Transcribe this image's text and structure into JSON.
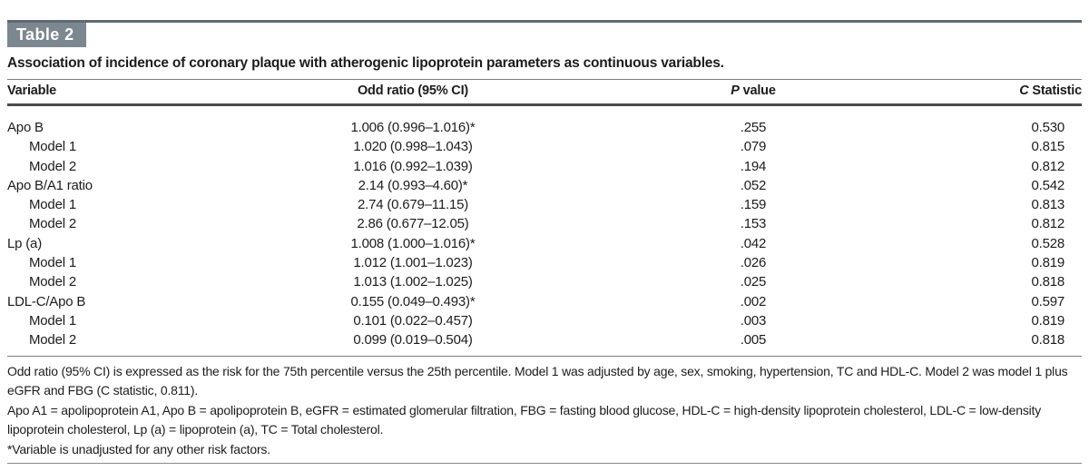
{
  "page": {
    "badge": "Table 2",
    "caption": "Association of incidence of coronary plaque with atherogenic lipoprotein parameters as continuous variables."
  },
  "colors": {
    "badge_bg": "#7b8890",
    "badge_text": "#ffffff",
    "rule_heavy": "#5f6b70",
    "rule_dark": "#4b4b4b",
    "rule_light": "#7e7e7e",
    "text": "#1c1c1c"
  },
  "table": {
    "columns": [
      {
        "italic": "",
        "label": "Variable"
      },
      {
        "italic": "",
        "label": "Odd ratio (95% CI)"
      },
      {
        "italic": "P",
        "label": " value"
      },
      {
        "italic": "C",
        "label": " Statistic"
      }
    ],
    "rows": [
      {
        "variable": "Apo B",
        "indent": false,
        "odd_ratio": "1.006 (0.996–1.016)*",
        "p_value": ".255",
        "c_statistic": "0.530"
      },
      {
        "variable": "Model 1",
        "indent": true,
        "odd_ratio": "1.020 (0.998–1.043)",
        "p_value": ".079",
        "c_statistic": "0.815"
      },
      {
        "variable": "Model 2",
        "indent": true,
        "odd_ratio": "1.016 (0.992–1.039)",
        "p_value": ".194",
        "c_statistic": "0.812"
      },
      {
        "variable": "Apo B/A1 ratio",
        "indent": false,
        "odd_ratio": "2.14 (0.993–4.60)*",
        "p_value": ".052",
        "c_statistic": "0.542"
      },
      {
        "variable": "Model 1",
        "indent": true,
        "odd_ratio": "2.74 (0.679–11.15)",
        "p_value": ".159",
        "c_statistic": "0.813"
      },
      {
        "variable": "Model 2",
        "indent": true,
        "odd_ratio": "2.86 (0.677–12.05)",
        "p_value": ".153",
        "c_statistic": "0.812"
      },
      {
        "variable": "Lp (a)",
        "indent": false,
        "odd_ratio": "1.008 (1.000–1.016)*",
        "p_value": ".042",
        "c_statistic": "0.528"
      },
      {
        "variable": "Model 1",
        "indent": true,
        "odd_ratio": "1.012 (1.001–1.023)",
        "p_value": ".026",
        "c_statistic": "0.819"
      },
      {
        "variable": "Model 2",
        "indent": true,
        "odd_ratio": "1.013 (1.002–1.025)",
        "p_value": ".025",
        "c_statistic": "0.818"
      },
      {
        "variable": "LDL-C/Apo B",
        "indent": false,
        "odd_ratio": "0.155 (0.049–0.493)*",
        "p_value": ".002",
        "c_statistic": "0.597"
      },
      {
        "variable": "Model 1",
        "indent": true,
        "odd_ratio": "0.101 (0.022–0.457)",
        "p_value": ".003",
        "c_statistic": "0.819"
      },
      {
        "variable": "Model 2",
        "indent": true,
        "odd_ratio": "0.099 (0.019–0.504)",
        "p_value": ".005",
        "c_statistic": "0.818"
      }
    ],
    "footnotes": [
      "Odd ratio (95% CI) is expressed as the risk for the 75th percentile versus the 25th percentile. Model 1 was adjusted by age, sex, smoking, hypertension, TC and HDL-C. Model 2 was model 1 plus eGFR and FBG (C statistic, 0.811).",
      "Apo A1 = apolipoprotein A1, Apo B = apolipoprotein B, eGFR = estimated glomerular filtration, FBG = fasting blood glucose, HDL-C = high-density lipoprotein cholesterol, LDL-C = low-density lipoprotein cholesterol, Lp (a) = lipoprotein (a), TC = Total cholesterol.",
      "*Variable is unadjusted for any other risk factors."
    ]
  }
}
